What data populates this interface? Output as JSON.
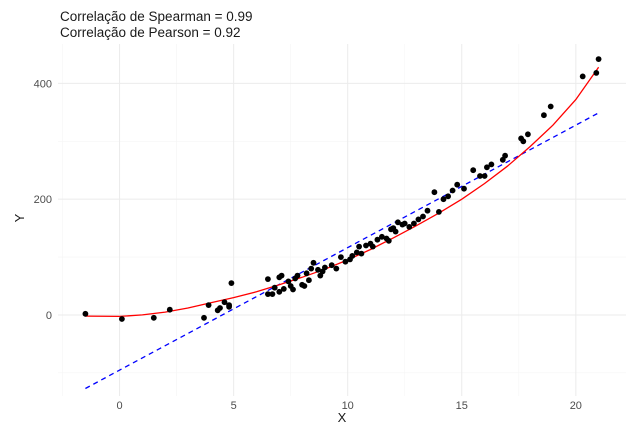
{
  "chart_data": {
    "type": "scatter",
    "title_lines": [
      "Correlação de Spearman = 0.99",
      "Correlação de Pearson = 0.92"
    ],
    "xlabel": "X",
    "ylabel": "Y",
    "xlim": [
      -2.7,
      22.2
    ],
    "ylim": [
      -140,
      468
    ],
    "x_ticks": [
      0,
      5,
      10,
      15,
      20
    ],
    "y_ticks": [
      0,
      200,
      400
    ],
    "x_minor_ticks": [
      -2.5,
      2.5,
      7.5,
      12.5,
      17.5
    ],
    "y_minor_ticks": [
      -100,
      100,
      300
    ],
    "grid": true,
    "colors": {
      "points": "#000000",
      "smooth_line": "#ff0000",
      "linear_fit": "#0000ff",
      "background": "#ffffff",
      "grid": "#ebebeb"
    },
    "points": [
      [
        -1.5,
        2
      ],
      [
        0.1,
        -7
      ],
      [
        1.5,
        -5
      ],
      [
        2.2,
        9
      ],
      [
        3.7,
        -5
      ],
      [
        3.9,
        17
      ],
      [
        4.3,
        8
      ],
      [
        4.4,
        12
      ],
      [
        4.6,
        22
      ],
      [
        4.8,
        14
      ],
      [
        4.8,
        17
      ],
      [
        4.9,
        55
      ],
      [
        6.5,
        36
      ],
      [
        6.5,
        62
      ],
      [
        6.7,
        36
      ],
      [
        6.8,
        47
      ],
      [
        7.0,
        40
      ],
      [
        7.0,
        65
      ],
      [
        7.1,
        68
      ],
      [
        7.2,
        45
      ],
      [
        7.4,
        58
      ],
      [
        7.5,
        50
      ],
      [
        7.6,
        44
      ],
      [
        7.7,
        63
      ],
      [
        7.8,
        68
      ],
      [
        8.0,
        52
      ],
      [
        8.1,
        50
      ],
      [
        8.2,
        72
      ],
      [
        8.3,
        60
      ],
      [
        8.4,
        80
      ],
      [
        8.5,
        90
      ],
      [
        8.7,
        78
      ],
      [
        8.8,
        68
      ],
      [
        8.9,
        75
      ],
      [
        9.0,
        82
      ],
      [
        9.3,
        86
      ],
      [
        9.5,
        80
      ],
      [
        9.7,
        100
      ],
      [
        9.9,
        92
      ],
      [
        10.1,
        96
      ],
      [
        10.2,
        102
      ],
      [
        10.4,
        108
      ],
      [
        10.5,
        118
      ],
      [
        10.6,
        106
      ],
      [
        10.8,
        120
      ],
      [
        11.0,
        123
      ],
      [
        11.1,
        118
      ],
      [
        11.3,
        130
      ],
      [
        11.5,
        135
      ],
      [
        11.7,
        132
      ],
      [
        11.8,
        128
      ],
      [
        11.9,
        148
      ],
      [
        12.0,
        150
      ],
      [
        12.1,
        144
      ],
      [
        12.2,
        160
      ],
      [
        12.4,
        156
      ],
      [
        12.5,
        158
      ],
      [
        12.7,
        152
      ],
      [
        12.9,
        158
      ],
      [
        13.1,
        165
      ],
      [
        13.3,
        170
      ],
      [
        13.5,
        180
      ],
      [
        13.8,
        212
      ],
      [
        14.0,
        178
      ],
      [
        14.2,
        200
      ],
      [
        14.4,
        205
      ],
      [
        14.6,
        215
      ],
      [
        14.8,
        225
      ],
      [
        15.1,
        218
      ],
      [
        15.5,
        250
      ],
      [
        15.8,
        240
      ],
      [
        16.0,
        240
      ],
      [
        16.1,
        255
      ],
      [
        16.3,
        260
      ],
      [
        16.8,
        268
      ],
      [
        16.9,
        275
      ],
      [
        17.6,
        305
      ],
      [
        17.7,
        300
      ],
      [
        17.9,
        312
      ],
      [
        18.6,
        345
      ],
      [
        18.9,
        360
      ],
      [
        20.3,
        412
      ],
      [
        20.9,
        418
      ],
      [
        21.0,
        442
      ]
    ],
    "smooth_line": {
      "name": "",
      "x": [
        -1.5,
        0,
        1,
        2,
        3,
        4,
        5,
        6,
        7,
        8,
        9,
        10,
        11,
        12,
        13,
        14,
        15,
        16,
        17,
        18,
        19,
        20,
        21
      ],
      "y": [
        -2,
        -2.5,
        0,
        5,
        12,
        21,
        30,
        40,
        52,
        65,
        79,
        95,
        113,
        133,
        154,
        176,
        200,
        227,
        257,
        291,
        328,
        372,
        428
      ]
    },
    "linear_fit": {
      "name": "",
      "x": [
        -1.5,
        21.0
      ],
      "y": [
        -127,
        349
      ]
    }
  }
}
